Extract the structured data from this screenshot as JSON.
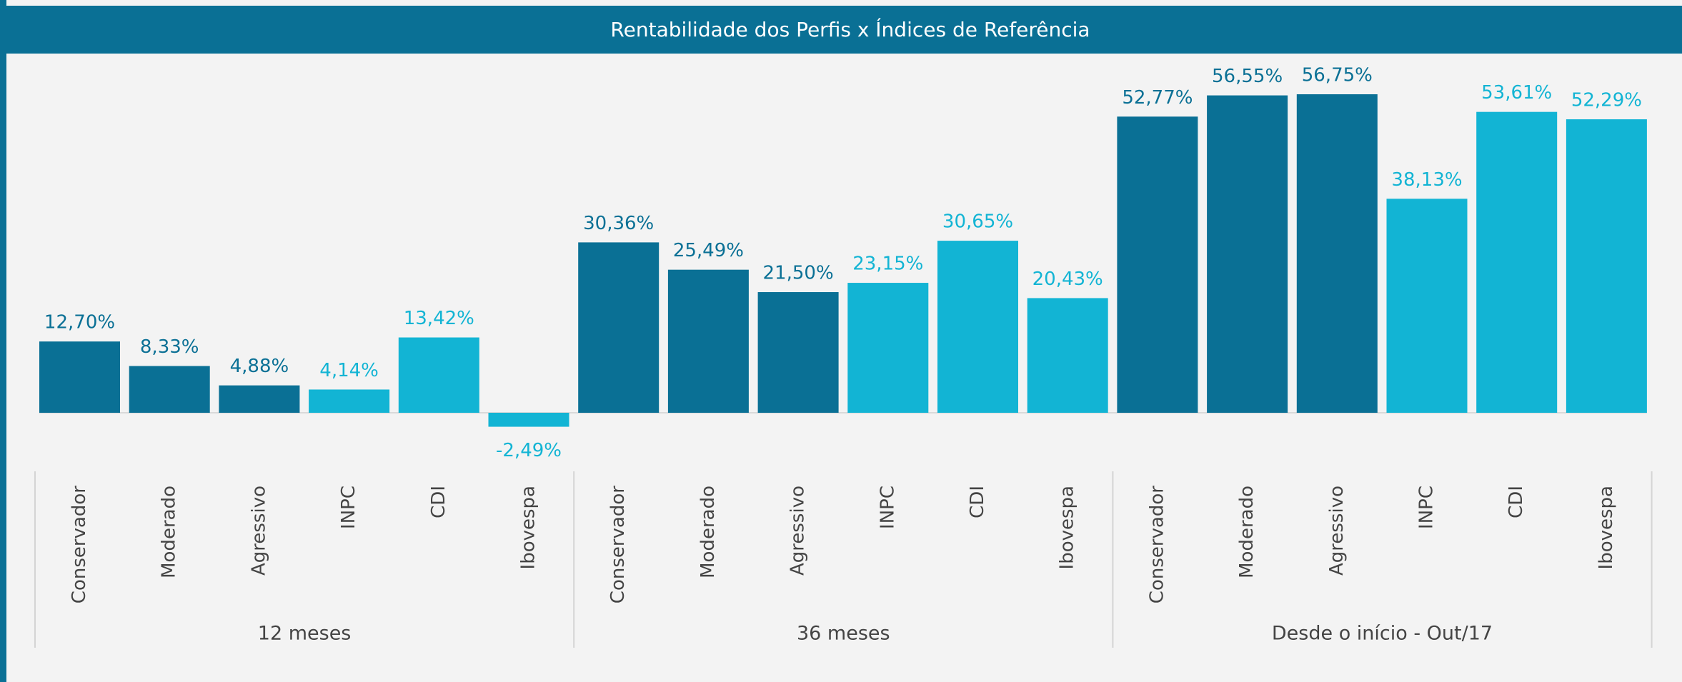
{
  "chart_data": {
    "type": "grouped-bar",
    "title": "Rentabilidade dos Perfis x Índices de Referência",
    "colors": [
      "#0a7095",
      "#0a7095",
      "#0a7095",
      "#12b4d4",
      "#12b4d4",
      "#12b4d4"
    ],
    "groups": [
      {
        "name": "12 meses",
        "categories": [
          "Conservador",
          "Moderado",
          "Agressivo",
          "INPC",
          "CDI",
          "Ibovespa"
        ],
        "values": [
          12.7,
          8.33,
          4.88,
          4.14,
          13.42,
          -2.49
        ],
        "value_labels": [
          "12,70%",
          "8,33%",
          "4,88%",
          "4,14%",
          "13,42%",
          "-2,49%"
        ]
      },
      {
        "name": "36 meses",
        "categories": [
          "Conservador",
          "Moderado",
          "Agressivo",
          "INPC",
          "CDI",
          "Ibovespa"
        ],
        "values": [
          30.36,
          25.49,
          21.5,
          23.15,
          30.65,
          20.43
        ],
        "value_labels": [
          "30,36%",
          "25,49%",
          "21,50%",
          "23,15%",
          "30,65%",
          "20,43%"
        ]
      },
      {
        "name": "Desde o início - Out/17",
        "categories": [
          "Conservador",
          "Moderado",
          "Agressivo",
          "INPC",
          "CDI",
          "Ibovespa"
        ],
        "values": [
          52.77,
          56.55,
          56.75,
          38.13,
          53.61,
          52.29
        ],
        "value_labels": [
          "52,77%",
          "56,55%",
          "56,75%",
          "38,13%",
          "53,61%",
          "52,29%"
        ]
      }
    ]
  }
}
